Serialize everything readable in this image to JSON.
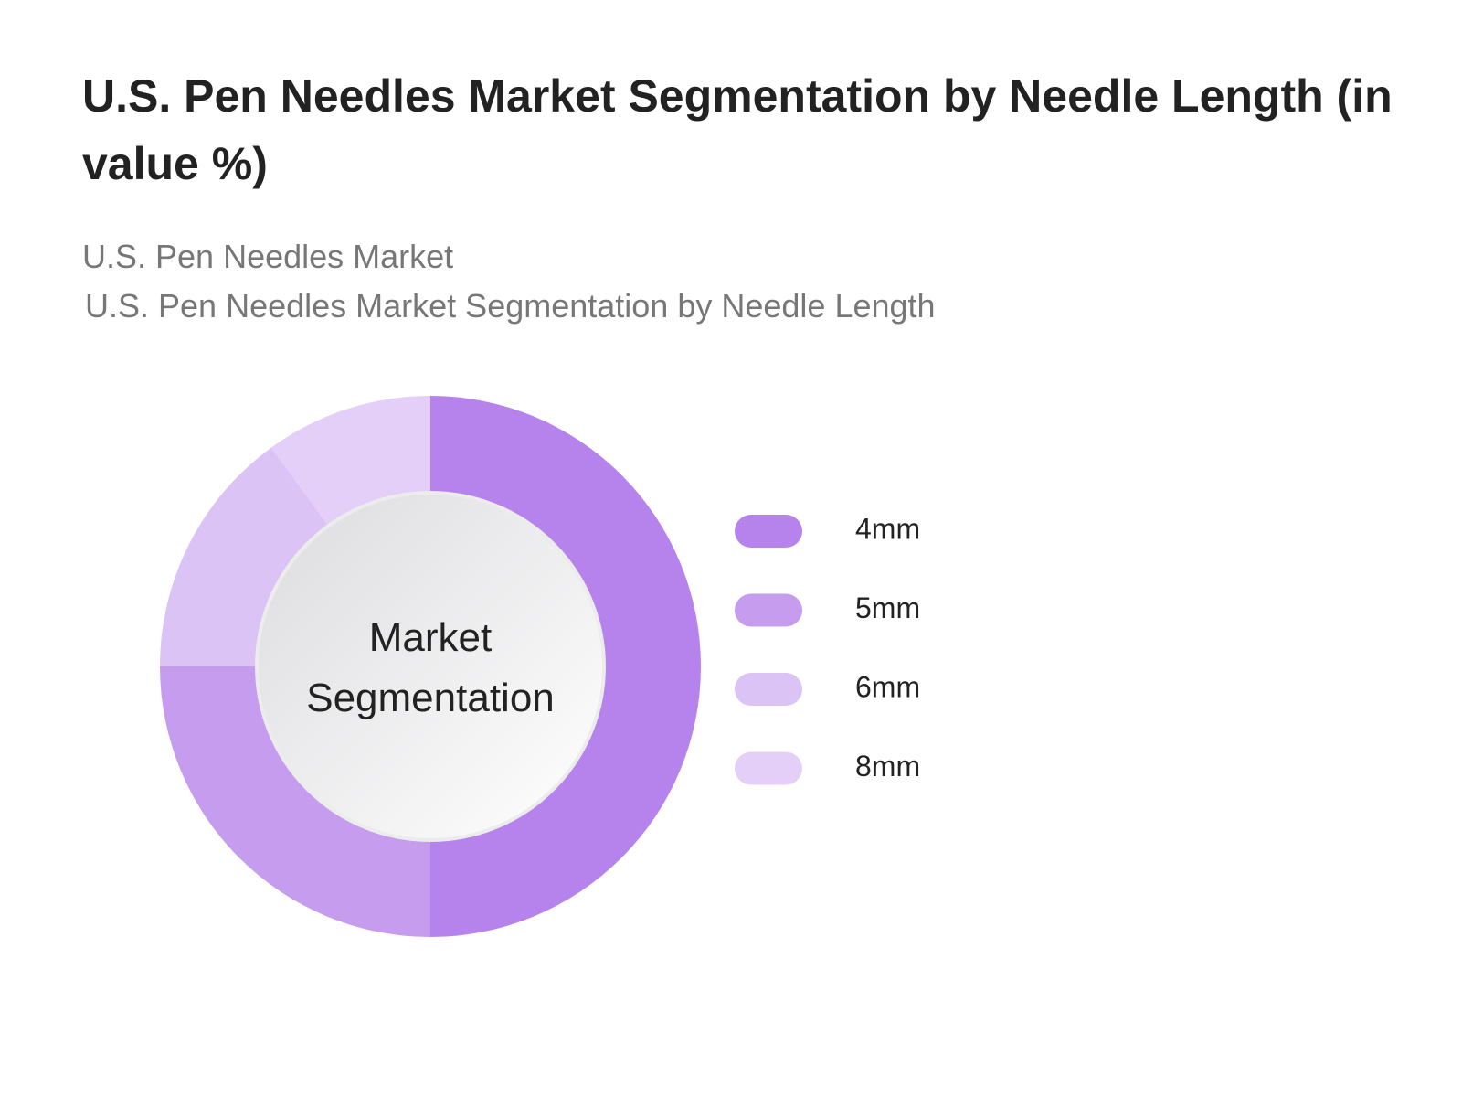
{
  "chart_data": {
    "type": "donut",
    "title": "U.S. Pen Needles Market Segmentation by Needle Length (in value %)",
    "subtitle": "U.S. Pen Needles Market",
    "subtitle_2": "U.S. Pen Needles Market Segmentation by Needle Length",
    "center_label": "Market Segmentation",
    "categories": [
      "4mm",
      "5mm",
      "6mm",
      "8mm"
    ],
    "values": [
      50,
      25,
      15,
      10
    ],
    "colors": [
      "#b583eb",
      "#c69cee",
      "#dcc3f5",
      "#e3cff7"
    ]
  }
}
